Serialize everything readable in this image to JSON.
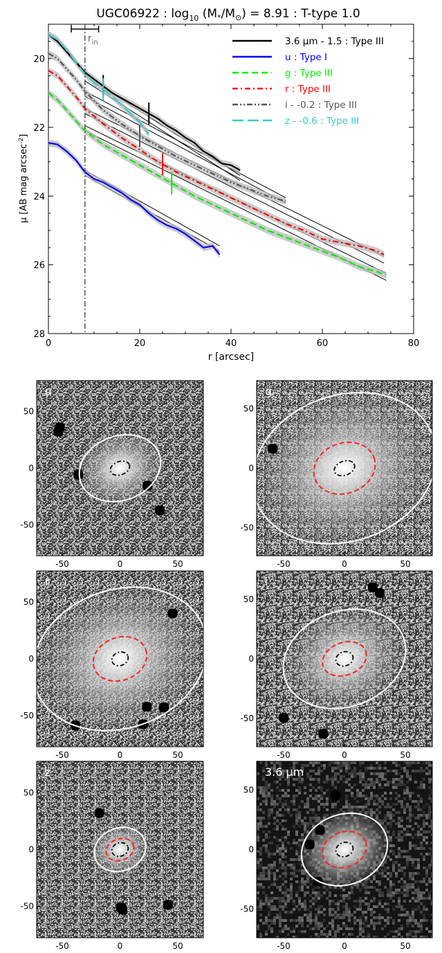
{
  "chart_data": [
    {
      "type": "line",
      "title_parts": {
        "galaxy": "UGC06922 : log",
        "sub10": "10",
        "paren_open": " (M",
        "star": "*",
        "slash": "/M",
        "sun": "⊙",
        "rest": ") = 8.91 : T-type 1.0"
      },
      "xlabel": "r [arcsec]",
      "ylabel_parts": {
        "main": "μ [AB mag arcsec",
        "sup": "-2",
        "end": "]"
      },
      "xlim": [
        0,
        80
      ],
      "ylim": [
        28,
        19
      ],
      "y_inverted": true,
      "xticks": [
        0,
        20,
        40,
        60,
        80
      ],
      "yticks": [
        20,
        22,
        24,
        26,
        28
      ],
      "grid": false,
      "legend_position": "top-right",
      "r_in": {
        "label_main": "r",
        "label_sub": "in",
        "x": 8,
        "bar": [
          5,
          11
        ]
      },
      "series": [
        {
          "name": "3.6 μm - 1.5 : Type III",
          "color": "#000000",
          "dash": "solid",
          "x": [
            0,
            2,
            4,
            6,
            8,
            10,
            12,
            14,
            16,
            18,
            20,
            22,
            24,
            26,
            28,
            30,
            32,
            34,
            36,
            38,
            40,
            42
          ],
          "y": [
            19.3,
            19.5,
            19.8,
            20.1,
            20.4,
            20.6,
            20.8,
            21.0,
            21.15,
            21.3,
            21.45,
            21.6,
            21.75,
            21.95,
            22.1,
            22.3,
            22.45,
            22.7,
            22.85,
            23.05,
            23.1,
            23.25
          ],
          "breaks": [
            12,
            22
          ]
        },
        {
          "name": "u : Type I",
          "color": "#0000ff",
          "dash": "solid",
          "x": [
            0,
            2,
            4,
            6,
            8,
            10,
            12,
            14,
            16,
            18,
            20,
            22,
            24,
            26,
            28,
            30,
            32,
            34,
            36,
            37.5
          ],
          "y": [
            22.45,
            22.5,
            22.7,
            22.95,
            23.3,
            23.5,
            23.6,
            23.75,
            23.9,
            24.1,
            24.25,
            24.5,
            24.7,
            24.85,
            24.95,
            25.1,
            25.3,
            25.5,
            25.45,
            25.7
          ],
          "breaks": []
        },
        {
          "name": "g : Type III",
          "color": "#00ee00",
          "dash": "dash",
          "x": [
            0,
            2,
            4,
            6,
            8,
            12,
            16,
            20,
            24,
            28,
            32,
            36,
            40,
            44,
            48,
            52,
            56,
            60,
            64,
            68,
            72,
            74
          ],
          "y": [
            21.0,
            21.2,
            21.5,
            21.8,
            22.1,
            22.5,
            22.8,
            23.1,
            23.4,
            23.7,
            24.0,
            24.25,
            24.5,
            24.75,
            25.0,
            25.2,
            25.4,
            25.6,
            25.8,
            26.05,
            26.2,
            26.3
          ],
          "breaks": [
            27
          ]
        },
        {
          "name": "r : Type III",
          "color": "#ff0000",
          "dash": "dashdot",
          "x": [
            0,
            2,
            4,
            6,
            8,
            12,
            16,
            20,
            24,
            28,
            32,
            36,
            40,
            44,
            48,
            52,
            56,
            60,
            64,
            68,
            72,
            73.5
          ],
          "y": [
            20.35,
            20.5,
            20.8,
            21.1,
            21.45,
            21.9,
            22.3,
            22.65,
            23.0,
            23.3,
            23.55,
            23.8,
            24.05,
            24.3,
            24.55,
            24.8,
            25.0,
            25.25,
            25.35,
            25.45,
            25.6,
            25.7
          ],
          "breaks": [
            25
          ]
        },
        {
          "name": "i - -0.2 : Type III",
          "color": "#555555",
          "dash": "dashdotdot",
          "x": [
            0,
            2,
            4,
            6,
            8,
            12,
            16,
            20,
            24,
            28,
            32,
            36,
            40,
            44,
            48,
            52
          ],
          "y": [
            19.85,
            20.0,
            20.3,
            20.6,
            20.95,
            21.5,
            21.9,
            22.25,
            22.55,
            22.85,
            23.1,
            23.35,
            23.6,
            23.8,
            24.0,
            24.15
          ],
          "breaks": [
            20
          ]
        },
        {
          "name": "z - -0.6 : Type III",
          "color": "#33cccc",
          "dash": "longdash",
          "x": [
            0,
            2,
            4,
            6,
            8,
            10,
            12,
            14,
            16,
            18,
            20,
            22
          ],
          "y": [
            19.3,
            19.45,
            19.75,
            20.1,
            20.45,
            20.7,
            20.9,
            21.1,
            21.35,
            21.6,
            21.85,
            22.2
          ],
          "breaks": [
            12
          ]
        }
      ],
      "fits": [
        [
          [
            8,
            20.5,
            42,
            23.4
          ],
          [
            8,
            20.65,
            42,
            23.55
          ]
        ],
        [
          [
            8,
            23.25,
            37.5,
            25.45
          ],
          [
            8,
            23.4,
            37.5,
            25.6
          ]
        ],
        [
          [
            8,
            21.95,
            74,
            26.25
          ],
          [
            8,
            22.1,
            74,
            26.45
          ]
        ],
        [
          [
            8,
            21.45,
            73.5,
            25.75
          ],
          [
            8,
            21.6,
            73.5,
            25.95
          ]
        ],
        [
          [
            8,
            20.95,
            52,
            24.05
          ],
          [
            8,
            21.1,
            52,
            24.2
          ]
        ]
      ]
    },
    {
      "type": "image-panels",
      "panels": [
        {
          "band": "u",
          "label": "u",
          "xticks": [
            "-50",
            "0",
            "50"
          ],
          "yticks": [
            "50",
            "0",
            "-50"
          ],
          "white_ellipse": {
            "rx": 35,
            "ry": 27
          },
          "red_ellipse": null,
          "black_ellipse": {
            "rx": 6,
            "ry": 4
          },
          "bg": "noisy"
        },
        {
          "band": "g",
          "label": "g",
          "xticks": [
            "-50",
            "0",
            "50"
          ],
          "yticks": [
            "50",
            "0",
            "-50"
          ],
          "white_ellipse": {
            "rx": 75,
            "ry": 58
          },
          "red_ellipse": {
            "rx": 25,
            "ry": 20
          },
          "black_ellipse": {
            "rx": 6,
            "ry": 4
          },
          "bg": "noisy"
        },
        {
          "band": "r",
          "label": "r",
          "xticks": [
            "-50",
            "0",
            "50"
          ],
          "yticks": [
            "50",
            "0",
            "-50"
          ],
          "white_ellipse": {
            "rx": 75,
            "ry": 58
          },
          "red_ellipse": {
            "rx": 23,
            "ry": 18
          },
          "black_ellipse": {
            "rx": 5,
            "ry": 4
          },
          "bg": "noisy"
        },
        {
          "band": "i",
          "label": "i",
          "xticks": [
            "-50",
            "0",
            "50"
          ],
          "yticks": [
            "50",
            "0",
            "-50"
          ],
          "white_ellipse": {
            "rx": 50,
            "ry": 38
          },
          "red_ellipse": {
            "rx": 18,
            "ry": 13
          },
          "black_ellipse": {
            "rx": 5,
            "ry": 4
          },
          "bg": "noisy"
        },
        {
          "band": "z",
          "label": "z",
          "xticks": [
            "-50",
            "0",
            "50"
          ],
          "yticks": [
            "50",
            "0",
            "-50"
          ],
          "white_ellipse": {
            "rx": 22,
            "ry": 18
          },
          "red_ellipse": {
            "rx": 12,
            "ry": 9
          },
          "black_ellipse": {
            "rx": 5,
            "ry": 4
          },
          "bg": "noisy"
        },
        {
          "band": "3.6",
          "label": "3.6 μm",
          "xticks": [
            "-50",
            "0",
            "50"
          ],
          "yticks": [
            "50",
            "0",
            "-50"
          ],
          "white_ellipse": {
            "rx": 35,
            "ry": 28
          },
          "red_ellipse": {
            "rx": 18,
            "ry": 14
          },
          "black_ellipse": {
            "rx": 5,
            "ry": 4
          },
          "bg": "dark"
        }
      ]
    }
  ]
}
